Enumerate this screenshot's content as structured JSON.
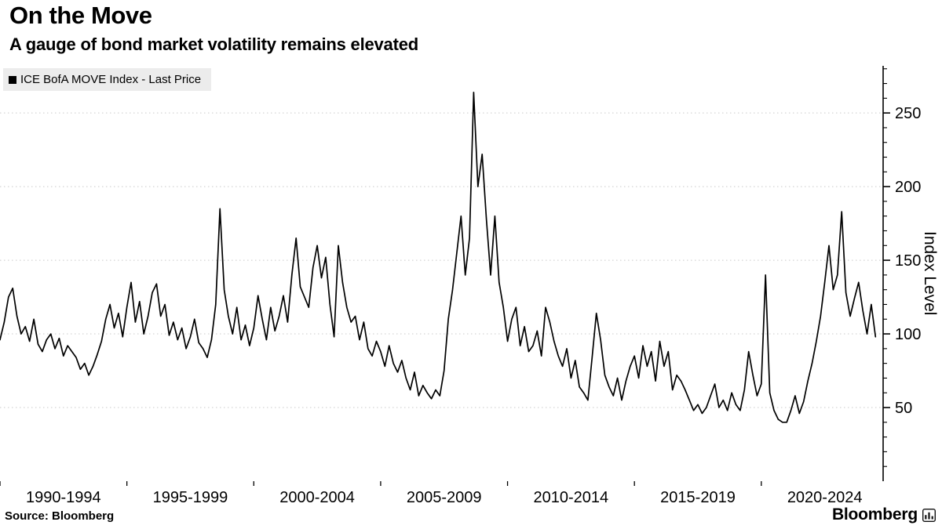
{
  "footer": {
    "source": "Source: Bloomberg",
    "brand": "Bloomberg",
    "brand_icon": "bar-chart-icon"
  },
  "chart_data": {
    "type": "line",
    "title": "On the Move",
    "subtitle": "A gauge of bond market volatility remains elevated",
    "legend": "ICE BofA MOVE Index - Last Price",
    "legend_marker_color": "#000000",
    "ylabel": "Index Level",
    "y_axis": {
      "side": "right",
      "min": 0,
      "max": 282,
      "major_ticks": [
        50,
        100,
        150,
        200,
        250
      ],
      "minor_tick_step": 10,
      "grid": "dotted-horizontal"
    },
    "x_axis": {
      "min": 1990,
      "max": 2024.8,
      "unit": "year",
      "group_labels": [
        {
          "label": "1990-1994",
          "center": 1992.5
        },
        {
          "label": "1995-1999",
          "center": 1997.5
        },
        {
          "label": "2000-2004",
          "center": 2002.5
        },
        {
          "label": "2005-2009",
          "center": 2007.5
        },
        {
          "label": "2010-2014",
          "center": 2012.5
        },
        {
          "label": "2015-2019",
          "center": 2017.5
        },
        {
          "label": "2020-2024",
          "center": 2022.5
        }
      ],
      "boundary_ticks": [
        1990,
        1995,
        2000,
        2005,
        2010,
        2015,
        2020
      ]
    },
    "series": [
      {
        "name": "ICE BofA MOVE Index - Last Price",
        "color": "#000000",
        "x_start": 1990.0,
        "x_step_years": 0.1666667,
        "values": [
          96,
          108,
          125,
          131,
          112,
          100,
          105,
          95,
          110,
          93,
          88,
          96,
          100,
          90,
          97,
          85,
          92,
          88,
          84,
          76,
          80,
          72,
          78,
          86,
          95,
          110,
          120,
          104,
          114,
          98,
          118,
          135,
          108,
          122,
          100,
          112,
          128,
          134,
          112,
          120,
          99,
          108,
          96,
          104,
          90,
          98,
          110,
          94,
          90,
          84,
          96,
          120,
          185,
          130,
          112,
          100,
          118,
          96,
          106,
          92,
          104,
          126,
          110,
          96,
          118,
          102,
          112,
          126,
          108,
          140,
          165,
          132,
          125,
          118,
          145,
          160,
          138,
          152,
          120,
          98,
          160,
          135,
          118,
          108,
          112,
          96,
          108,
          90,
          85,
          95,
          88,
          78,
          92,
          80,
          74,
          82,
          70,
          62,
          74,
          58,
          65,
          60,
          56,
          62,
          58,
          75,
          110,
          130,
          155,
          180,
          140,
          165,
          264,
          200,
          222,
          178,
          140,
          180,
          135,
          118,
          95,
          110,
          118,
          92,
          105,
          88,
          92,
          102,
          85,
          118,
          108,
          95,
          85,
          78,
          90,
          70,
          82,
          64,
          60,
          55,
          84,
          114,
          96,
          72,
          64,
          58,
          70,
          55,
          68,
          78,
          85,
          70,
          92,
          78,
          88,
          68,
          95,
          78,
          88,
          62,
          72,
          68,
          62,
          55,
          48,
          52,
          46,
          50,
          58,
          66,
          50,
          55,
          48,
          60,
          52,
          48,
          62,
          88,
          72,
          58,
          66,
          140,
          60,
          48,
          42,
          40,
          40,
          48,
          58,
          46,
          54,
          68,
          80,
          95,
          112,
          135,
          160,
          130,
          140,
          183,
          128,
          112,
          124,
          135,
          116,
          100,
          120,
          98
        ]
      }
    ]
  }
}
